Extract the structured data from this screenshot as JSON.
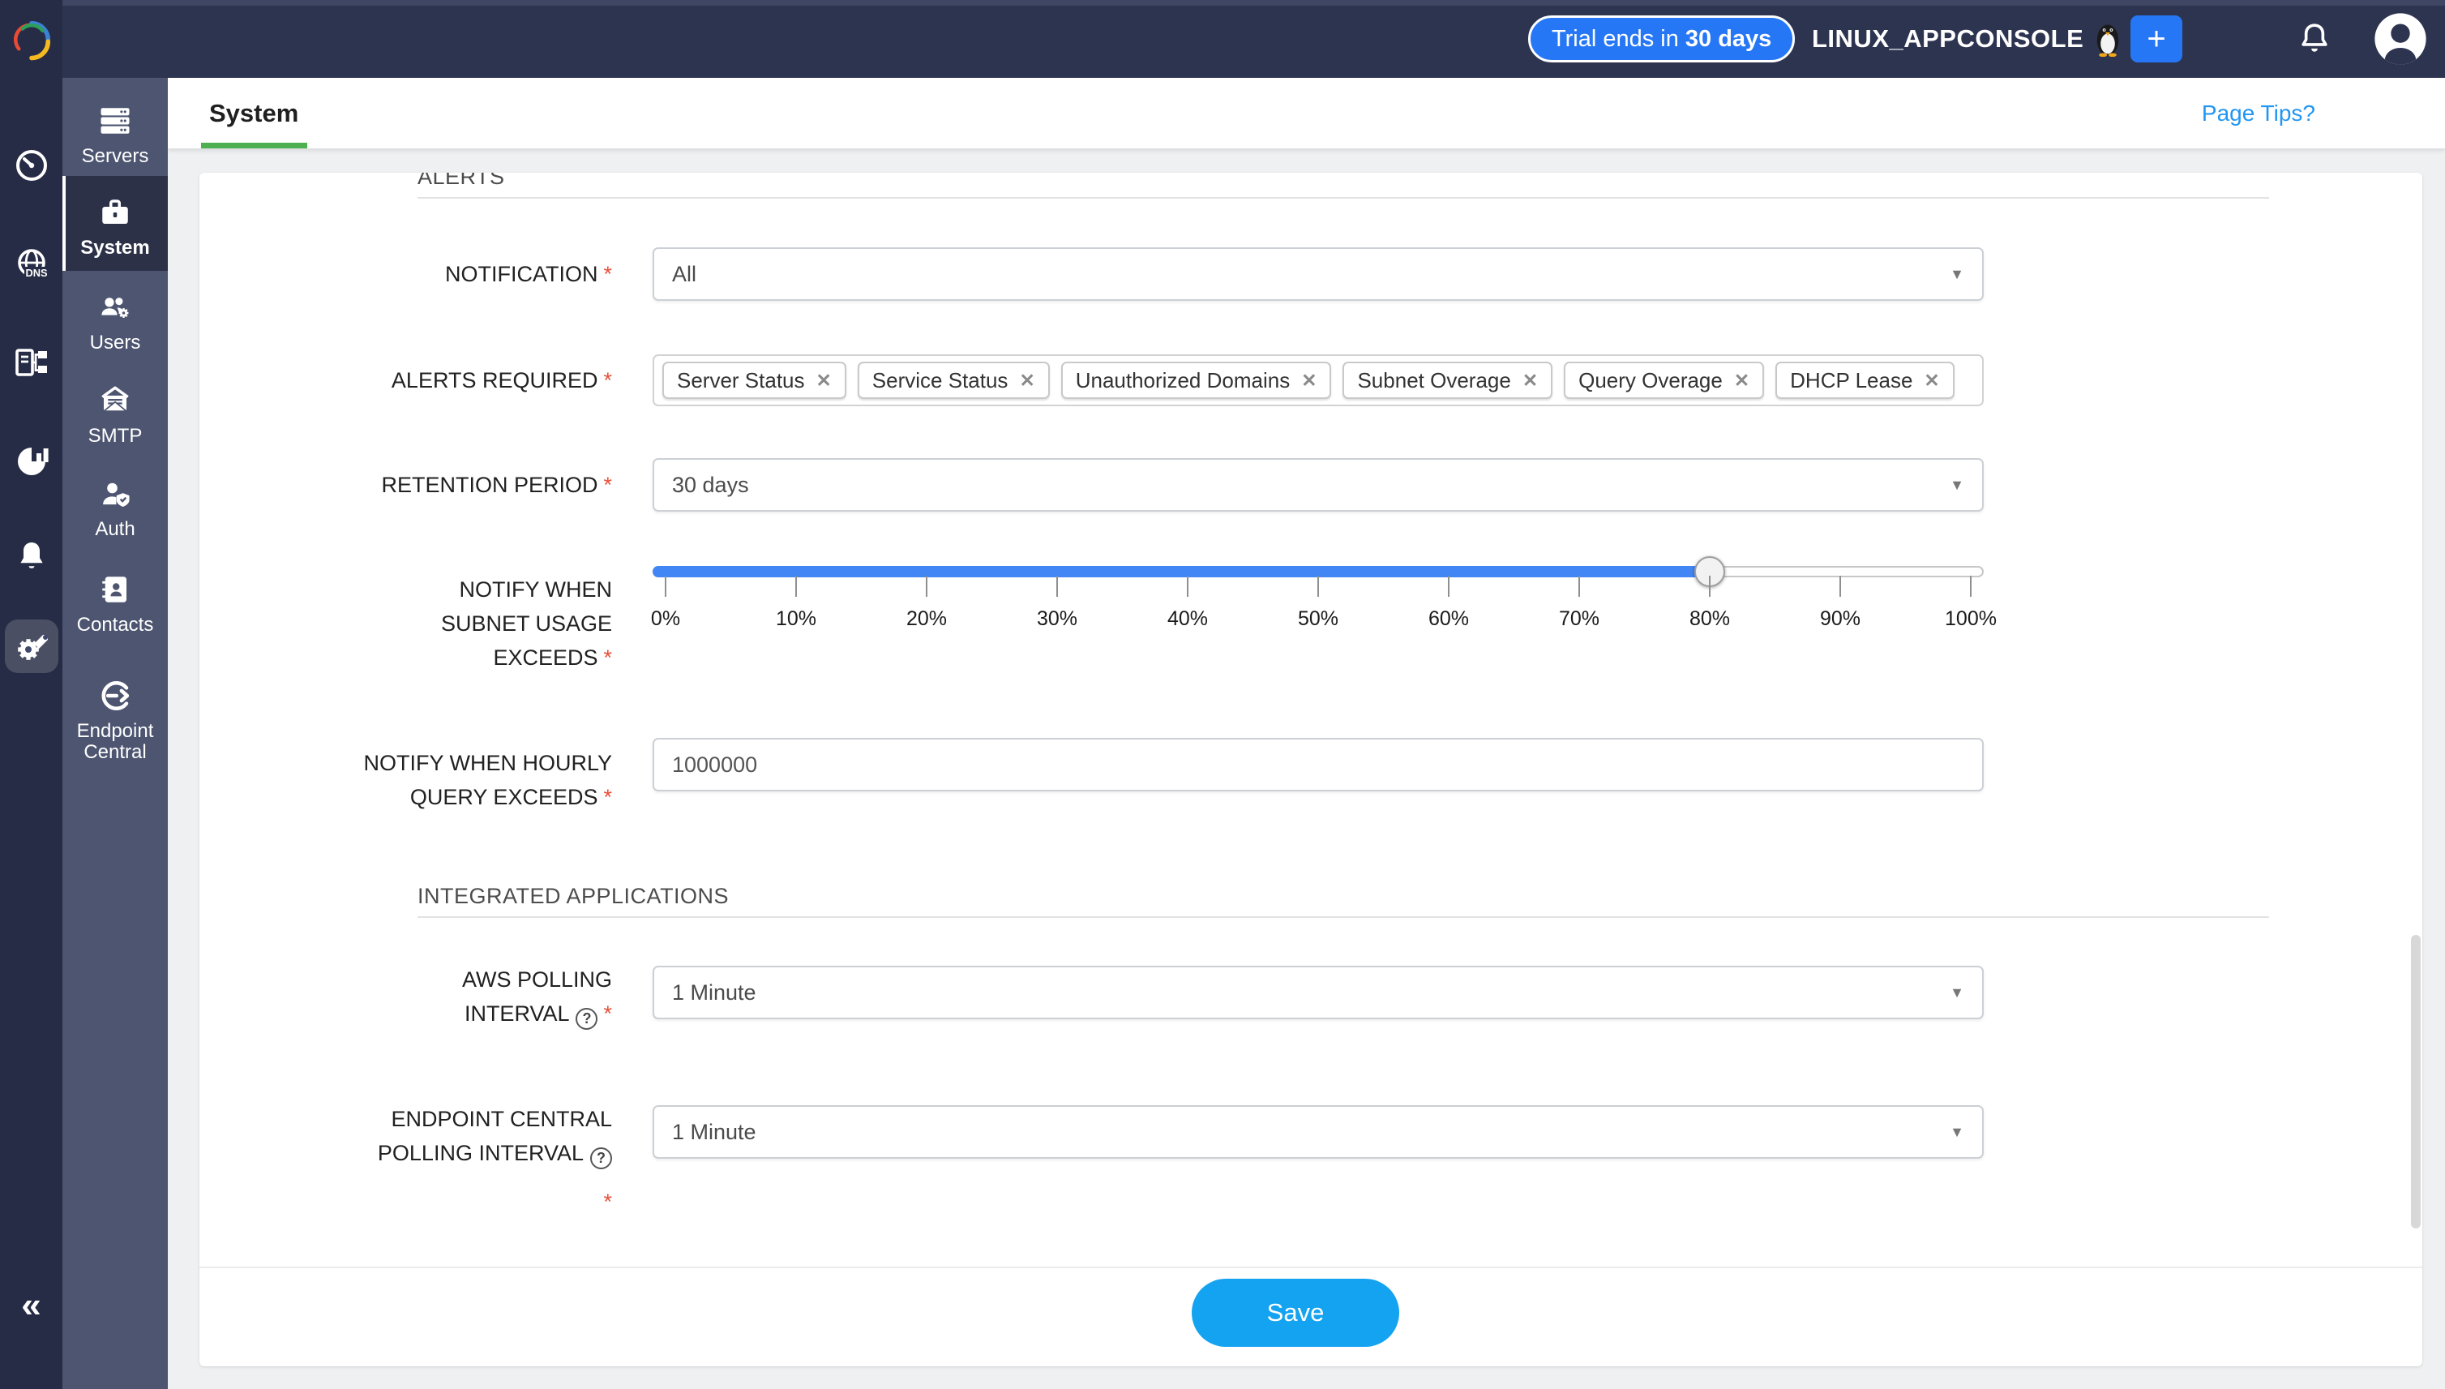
{
  "colors": {
    "topbar_bg": "#2d3450",
    "rail_bg": "#262c45",
    "sidebar_bg": "#4d5571",
    "accent_blue": "#2577f5",
    "save_blue": "#14a3f0",
    "link_blue": "#2196f3",
    "slider_blue": "#4285f4",
    "tab_underline_green": "#4caf50",
    "required_red": "#e8503a"
  },
  "icons": {
    "caret": "▼",
    "close": "✕",
    "collapse": "«",
    "plus": "+",
    "help": "?"
  },
  "topbar": {
    "trial_prefix": "Trial ends in",
    "trial_bold": "30 days",
    "account_name": "LINUX_APPCONSOLE"
  },
  "sidebar": {
    "items": [
      {
        "label": "Servers"
      },
      {
        "label": "System",
        "active": true
      },
      {
        "label": "Users"
      },
      {
        "label": "SMTP"
      },
      {
        "label": "Auth"
      },
      {
        "label": "Contacts"
      },
      {
        "label": "Endpoint",
        "label2": "Central"
      }
    ]
  },
  "tabbar": {
    "tab": "System",
    "page_tips": "Page Tips?"
  },
  "form": {
    "required_marker": "*",
    "alerts_header": "ALERTS",
    "notification": {
      "label": "NOTIFICATION",
      "value": "All"
    },
    "alerts_required": {
      "label": "ALERTS REQUIRED",
      "chips": [
        "Server Status",
        "Service Status",
        "Unauthorized Domains",
        "Subnet Overage",
        "Query Overage",
        "DHCP Lease"
      ]
    },
    "retention": {
      "label": "RETENTION PERIOD",
      "value": "30 days"
    },
    "subnet": {
      "label_lines": [
        "NOTIFY WHEN",
        "SUBNET USAGE",
        "EXCEEDS"
      ],
      "value_percent": 80,
      "ticks": [
        "0%",
        "10%",
        "20%",
        "30%",
        "40%",
        "50%",
        "60%",
        "70%",
        "80%",
        "90%",
        "100%"
      ]
    },
    "hourly_query": {
      "label_lines": [
        "NOTIFY WHEN HOURLY",
        "QUERY EXCEEDS"
      ],
      "value": "1000000"
    },
    "integrated_header": "INTEGRATED APPLICATIONS",
    "aws_polling": {
      "label_lines": [
        "AWS POLLING",
        "INTERVAL"
      ],
      "value": "1 Minute"
    },
    "ec_polling": {
      "label_lines": [
        "ENDPOINT CENTRAL",
        "POLLING INTERVAL"
      ],
      "value": "1 Minute"
    },
    "save_label": "Save"
  }
}
